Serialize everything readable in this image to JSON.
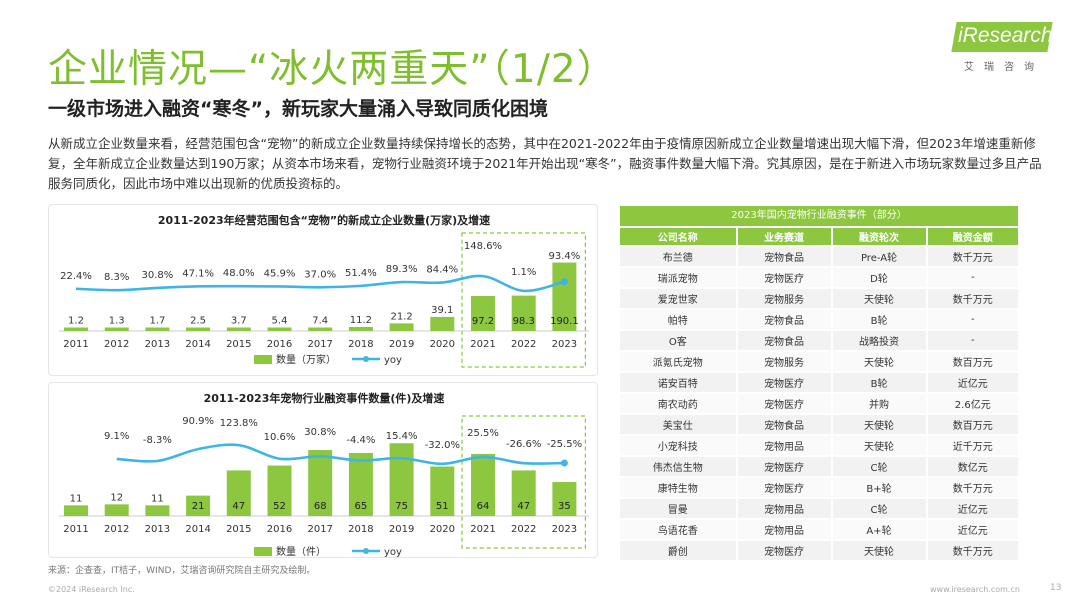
{
  "header": {
    "title": "企业情况—“冰火两重天”（1/2）",
    "subtitle": "一级市场进入融资“寒冬”，新玩家大量涌入导致同质化困境",
    "logo": "iResearch",
    "logo_sub": "艾瑞咨询"
  },
  "description": "从新成立企业数量来看，经营范围包含“宠物”的新成立企业数量持续保持增长的态势，其中在2021-2022年由于疫情原因新成立企业数量增速出现大幅下滑，但2023年增速重新修复，全年新成立企业数量达到190万家；从资本市场来看，宠物行业融资环境于2021年开始出现“寒冬”，融资事件数量大幅下滑。究其原因，是在于新进入市场玩家数量过多且产品服务同质化，因此市场中难以出现新的优质投资标的。",
  "chart_data": [
    {
      "type": "bar",
      "title": "2011-2023年经营范围包含“宠物”的新成立企业数量(万家)及增速",
      "categories": [
        "2011",
        "2012",
        "2013",
        "2014",
        "2015",
        "2016",
        "2017",
        "2018",
        "2019",
        "2020",
        "2021",
        "2022",
        "2023"
      ],
      "series": [
        {
          "name": "数量（万家）",
          "type": "bar",
          "values": [
            1.2,
            1.3,
            1.7,
            2.5,
            3.7,
            5.4,
            7.4,
            11.2,
            21.2,
            39.1,
            97.2,
            98.3,
            190.1
          ]
        },
        {
          "name": "yoy",
          "type": "line",
          "values": [
            22.4,
            8.3,
            30.8,
            47.1,
            48.0,
            45.9,
            37.0,
            51.4,
            89.3,
            84.4,
            148.6,
            1.1,
            93.4
          ],
          "labels": [
            "22.4%",
            "8.3%",
            "30.8%",
            "47.1%",
            "48.0%",
            "45.9%",
            "37.0%",
            "51.4%",
            "89.3%",
            "84.4%",
            "148.6%",
            "1.1%",
            "93.4%"
          ]
        }
      ],
      "highlight": [
        "2021",
        "2022",
        "2023"
      ],
      "legend": [
        "数量（万家）",
        "yoy"
      ],
      "colors": {
        "bar": "#8dc63f",
        "line": "#3fb5e5"
      }
    },
    {
      "type": "bar",
      "title": "2011-2023年宠物行业融资事件数量(件)及增速",
      "categories": [
        "2011",
        "2012",
        "2013",
        "2014",
        "2015",
        "2016",
        "2017",
        "2018",
        "2019",
        "2020",
        "2021",
        "2022",
        "2023"
      ],
      "series": [
        {
          "name": "数量（件）",
          "type": "bar",
          "values": [
            11,
            12,
            11,
            21,
            47,
            52,
            68,
            65,
            75,
            51,
            64,
            47,
            35
          ]
        },
        {
          "name": "yoy",
          "type": "line",
          "values": [
            null,
            9.1,
            -8.3,
            90.9,
            123.8,
            10.6,
            30.8,
            -4.4,
            15.4,
            -32.0,
            25.5,
            -26.6,
            -25.5
          ],
          "labels": [
            "",
            "9.1%",
            "-8.3%",
            "90.9%",
            "123.8%",
            "10.6%",
            "30.8%",
            "-4.4%",
            "15.4%",
            "-32.0%",
            "25.5%",
            "-26.6%",
            "-25.5%"
          ]
        }
      ],
      "highlight": [
        "2021",
        "2022",
        "2023"
      ],
      "legend": [
        "数量（件）",
        "yoy"
      ],
      "colors": {
        "bar": "#8dc63f",
        "line": "#3fb5e5"
      }
    },
    {
      "type": "table",
      "title": "2023年国内宠物行业融资事件（部分）",
      "columns": [
        "公司名称",
        "业务赛道",
        "融资轮次",
        "融资金额"
      ],
      "rows": [
        [
          "布兰德",
          "宠物食品",
          "Pre-A轮",
          "数千万元"
        ],
        [
          "瑞派宠物",
          "宠物医疗",
          "D轮",
          "-"
        ],
        [
          "爱宠世家",
          "宠物服务",
          "天使轮",
          "数千万元"
        ],
        [
          "帕特",
          "宠物食品",
          "B轮",
          "-"
        ],
        [
          "O客",
          "宠物食品",
          "战略投资",
          "-"
        ],
        [
          "派氪氏宠物",
          "宠物服务",
          "天使轮",
          "数百万元"
        ],
        [
          "诺安百特",
          "宠物医疗",
          "B轮",
          "近亿元"
        ],
        [
          "南农动药",
          "宠物医疗",
          "并购",
          "2.6亿元"
        ],
        [
          "美宝仕",
          "宠物食品",
          "天使轮",
          "数百万元"
        ],
        [
          "小宠科技",
          "宠物用品",
          "天使轮",
          "近千万元"
        ],
        [
          "伟杰信生物",
          "宠物医疗",
          "C轮",
          "数亿元"
        ],
        [
          "康特生物",
          "宠物医疗",
          "B+轮",
          "数千万元"
        ],
        [
          "冒曼",
          "宠物用品",
          "C轮",
          "近亿元"
        ],
        [
          "鸟语花香",
          "宠物用品",
          "A+轮",
          "近亿元"
        ],
        [
          "爵创",
          "宠物医疗",
          "天使轮",
          "数千万元"
        ]
      ]
    }
  ],
  "source": "来源：企查查，IT桔子，WIND，艾瑞咨询研究院自主研究及绘制。",
  "footer": {
    "copyright": "©2024 iResearch Inc.",
    "website": "www.iresearch.com.cn",
    "page": "13"
  }
}
